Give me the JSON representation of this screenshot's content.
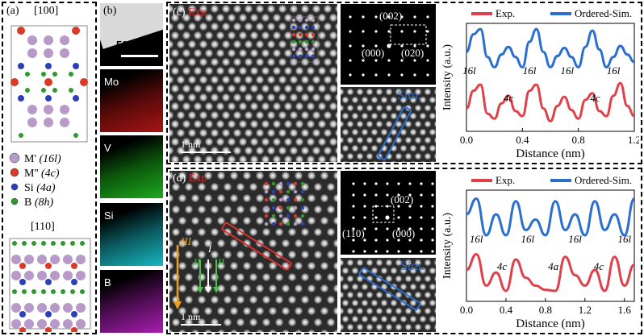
{
  "panel_a": {
    "label": "(a)",
    "view1": "[100]",
    "view2": "[110]",
    "legend": [
      {
        "symbol": "M'",
        "site": "(16l)",
        "color": "#b89ac8"
      },
      {
        "symbol": "M''",
        "site": "(4c)",
        "color": "#d83a26"
      },
      {
        "symbol": "Si",
        "site": "(4a)",
        "color": "#2d3fb8"
      },
      {
        "symbol": "B",
        "site": "(8h)",
        "color": "#2e9a2e"
      }
    ]
  },
  "panel_b": {
    "label": "(b)",
    "scale": "500 nm",
    "maps": [
      {
        "element": "Mo",
        "color": "#e02424"
      },
      {
        "element": "V",
        "color": "#2fd02f"
      },
      {
        "element": "Si",
        "color": "#20d0d8"
      },
      {
        "element": "B",
        "color": "#d030d8"
      }
    ]
  },
  "panel_c": {
    "label": "(c)",
    "exp": "Exp",
    "sim": "Sim.",
    "scale": "1 nm",
    "fft_spots": [
      "(002)",
      "(000)",
      "(020)"
    ]
  },
  "panel_d": {
    "label": "(d)",
    "exp": "Exp",
    "sim": "Sim.",
    "scale": "1 nm",
    "fft_spots": [
      "(002)",
      "(110)",
      "(000)"
    ],
    "markers": [
      "III",
      "I",
      "II",
      "II"
    ]
  },
  "chart_data": [
    {
      "type": "line",
      "xlabel": "Distance (nm)",
      "ylabel": "Intensity (a.u.)",
      "xlim": [
        0.0,
        1.2
      ],
      "xticks": [
        "0.0",
        "0.4",
        "0.8",
        "1.2"
      ],
      "legend": [
        "Exp.",
        "Ordered-Sim."
      ],
      "series": [
        {
          "name": "Ordered-Sim.",
          "color": "#2a6fd0",
          "offset": 1,
          "x": [
            0.0,
            0.05,
            0.1,
            0.15,
            0.2,
            0.25,
            0.3,
            0.35,
            0.4,
            0.45,
            0.5,
            0.55,
            0.6,
            0.65,
            0.7,
            0.75,
            0.8,
            0.85,
            0.9,
            0.95,
            1.0,
            1.05,
            1.1,
            1.15,
            1.2
          ],
          "y": [
            0.5,
            0.85,
            0.95,
            0.4,
            0.2,
            0.45,
            0.6,
            0.4,
            0.2,
            0.7,
            0.95,
            0.5,
            0.2,
            0.42,
            0.58,
            0.4,
            0.2,
            0.6,
            0.92,
            0.55,
            0.2,
            0.4,
            0.62,
            0.45,
            0.3
          ]
        },
        {
          "name": "Exp.",
          "color": "#e0404a",
          "offset": 0,
          "x": [
            0.0,
            0.05,
            0.1,
            0.15,
            0.2,
            0.25,
            0.3,
            0.35,
            0.4,
            0.45,
            0.5,
            0.55,
            0.6,
            0.65,
            0.7,
            0.75,
            0.8,
            0.85,
            0.9,
            0.95,
            1.0,
            1.05,
            1.1,
            1.15,
            1.2
          ],
          "y": [
            0.45,
            0.8,
            0.92,
            0.35,
            0.25,
            0.55,
            0.7,
            0.4,
            0.3,
            0.8,
            0.92,
            0.45,
            0.2,
            0.5,
            0.68,
            0.42,
            0.25,
            0.62,
            0.75,
            0.4,
            0.3,
            0.7,
            0.95,
            0.5,
            0.3
          ]
        }
      ],
      "annotations": [
        {
          "text": "16l",
          "x": 0.02,
          "row": "sim"
        },
        {
          "text": "16l",
          "x": 0.45,
          "row": "sim"
        },
        {
          "text": "16l",
          "x": 0.72,
          "row": "sim"
        },
        {
          "text": "16l",
          "x": 1.05,
          "row": "sim"
        },
        {
          "text": "4c",
          "x": 0.3,
          "row": "exp"
        },
        {
          "text": "4c",
          "x": 0.92,
          "row": "exp"
        }
      ]
    },
    {
      "type": "line",
      "xlabel": "Distance (nm)",
      "ylabel": "Intensity (a.u.)",
      "xlim": [
        0.0,
        1.7
      ],
      "xticks": [
        "0.0",
        "0.4",
        "0.8",
        "1.2",
        "1.6"
      ],
      "legend": [
        "Exp.",
        "Ordered-Sim."
      ],
      "series": [
        {
          "name": "Ordered-Sim.",
          "color": "#2a6fd0",
          "offset": 1,
          "x": [
            0.0,
            0.1,
            0.2,
            0.3,
            0.4,
            0.5,
            0.6,
            0.7,
            0.8,
            0.9,
            1.0,
            1.1,
            1.2,
            1.3,
            1.4,
            1.5,
            1.6,
            1.7
          ],
          "y": [
            0.6,
            0.9,
            0.2,
            0.6,
            0.2,
            0.85,
            0.3,
            0.5,
            0.2,
            0.85,
            0.3,
            0.6,
            0.2,
            0.85,
            0.3,
            0.6,
            0.2,
            0.9
          ]
        },
        {
          "name": "Exp.",
          "color": "#e0404a",
          "offset": 0,
          "x": [
            0.0,
            0.1,
            0.2,
            0.3,
            0.4,
            0.5,
            0.6,
            0.7,
            0.8,
            0.9,
            1.0,
            1.1,
            1.2,
            1.3,
            1.4,
            1.5,
            1.6,
            1.7
          ],
          "y": [
            0.6,
            0.9,
            0.3,
            0.55,
            0.2,
            0.8,
            0.45,
            0.3,
            0.22,
            0.2,
            0.85,
            0.5,
            0.3,
            0.6,
            0.2,
            0.85,
            0.3,
            0.7
          ]
        }
      ],
      "annotations": [
        {
          "text": "16l",
          "x": 0.1,
          "row": "sim"
        },
        {
          "text": "16l",
          "x": 0.62,
          "row": "sim"
        },
        {
          "text": "16l",
          "x": 1.1,
          "row": "sim"
        },
        {
          "text": "16l",
          "x": 1.6,
          "row": "sim"
        },
        {
          "text": "4c",
          "x": 0.36,
          "row": "exp"
        },
        {
          "text": "4a",
          "x": 0.88,
          "row": "exp"
        },
        {
          "text": "4c",
          "x": 1.34,
          "row": "exp"
        }
      ]
    }
  ]
}
